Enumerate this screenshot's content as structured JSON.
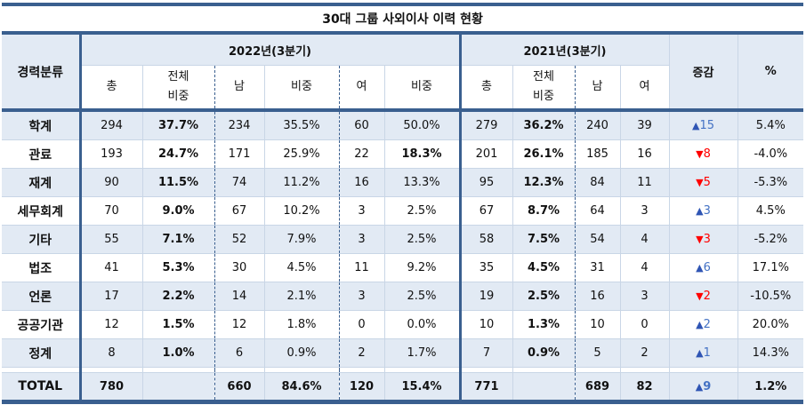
{
  "title": "30대 그룹 사외이사 이력 현황",
  "header": {
    "category": "경력분류",
    "year2022": "2022년(3분기)",
    "year2021": "2021년(3분기)",
    "change": "증감",
    "percent": "%",
    "cols2022": {
      "total": "총",
      "share_line1": "전체",
      "share_line2": "비중",
      "male": "남",
      "male_share": "비중",
      "female": "여",
      "female_share": "비중"
    },
    "cols2021": {
      "total": "총",
      "share_line1": "전체",
      "share_line2": "비중",
      "male": "남",
      "female": "여"
    }
  },
  "colors": {
    "border": "#3a5f8f",
    "stripe": "#e2eaf4",
    "up": "#4472c4",
    "down": "#ff0000"
  },
  "rows": [
    {
      "category": "학계",
      "t22": "294",
      "s22": "37.7%",
      "m22": "234",
      "ms22": "35.5%",
      "f22": "60",
      "fs22": "50.0%",
      "fs22_bold": false,
      "t21": "279",
      "s21": "36.2%",
      "m21": "240",
      "f21": "39",
      "dir": "up",
      "tri": "▲",
      "change": "15",
      "pct": "5.4%"
    },
    {
      "category": "관료",
      "t22": "193",
      "s22": "24.7%",
      "m22": "171",
      "ms22": "25.9%",
      "f22": "22",
      "fs22": "18.3%",
      "fs22_bold": true,
      "t21": "201",
      "s21": "26.1%",
      "m21": "185",
      "f21": "16",
      "dir": "down",
      "tri": "▼",
      "change": "8",
      "pct": "-4.0%"
    },
    {
      "category": "재계",
      "t22": "90",
      "s22": "11.5%",
      "m22": "74",
      "ms22": "11.2%",
      "f22": "16",
      "fs22": "13.3%",
      "fs22_bold": false,
      "t21": "95",
      "s21": "12.3%",
      "m21": "84",
      "f21": "11",
      "dir": "down",
      "tri": "▼",
      "change": "5",
      "pct": "-5.3%"
    },
    {
      "category": "세무회계",
      "t22": "70",
      "s22": "9.0%",
      "m22": "67",
      "ms22": "10.2%",
      "f22": "3",
      "fs22": "2.5%",
      "fs22_bold": false,
      "t21": "67",
      "s21": "8.7%",
      "m21": "64",
      "f21": "3",
      "dir": "up",
      "tri": "▲",
      "change": "3",
      "pct": "4.5%"
    },
    {
      "category": "기타",
      "t22": "55",
      "s22": "7.1%",
      "m22": "52",
      "ms22": "7.9%",
      "f22": "3",
      "fs22": "2.5%",
      "fs22_bold": false,
      "t21": "58",
      "s21": "7.5%",
      "m21": "54",
      "f21": "4",
      "dir": "down",
      "tri": "▼",
      "change": "3",
      "pct": "-5.2%"
    },
    {
      "category": "법조",
      "t22": "41",
      "s22": "5.3%",
      "m22": "30",
      "ms22": "4.5%",
      "f22": "11",
      "fs22": "9.2%",
      "fs22_bold": false,
      "t21": "35",
      "s21": "4.5%",
      "m21": "31",
      "f21": "4",
      "dir": "up",
      "tri": "▲",
      "change": "6",
      "pct": "17.1%"
    },
    {
      "category": "언론",
      "t22": "17",
      "s22": "2.2%",
      "m22": "14",
      "ms22": "2.1%",
      "f22": "3",
      "fs22": "2.5%",
      "fs22_bold": false,
      "t21": "19",
      "s21": "2.5%",
      "m21": "16",
      "f21": "3",
      "dir": "down",
      "tri": "▼",
      "change": "2",
      "pct": "-10.5%"
    },
    {
      "category": "공공기관",
      "t22": "12",
      "s22": "1.5%",
      "m22": "12",
      "ms22": "1.8%",
      "f22": "0",
      "fs22": "0.0%",
      "fs22_bold": false,
      "t21": "10",
      "s21": "1.3%",
      "m21": "10",
      "f21": "0",
      "dir": "up",
      "tri": "▲",
      "change": "2",
      "pct": "20.0%"
    },
    {
      "category": "정계",
      "t22": "8",
      "s22": "1.0%",
      "m22": "6",
      "ms22": "0.9%",
      "f22": "2",
      "fs22": "1.7%",
      "fs22_bold": false,
      "t21": "7",
      "s21": "0.9%",
      "m21": "5",
      "f21": "2",
      "dir": "up",
      "tri": "▲",
      "change": "1",
      "pct": "14.3%"
    }
  ],
  "total": {
    "category": "TOTAL",
    "t22": "780",
    "s22": "",
    "m22": "660",
    "ms22": "84.6%",
    "f22": "120",
    "fs22": "15.4%",
    "t21": "771",
    "s21": "",
    "m21": "689",
    "f21": "82",
    "dir": "up",
    "tri": "▲",
    "change": "9",
    "pct": "1.2%"
  }
}
